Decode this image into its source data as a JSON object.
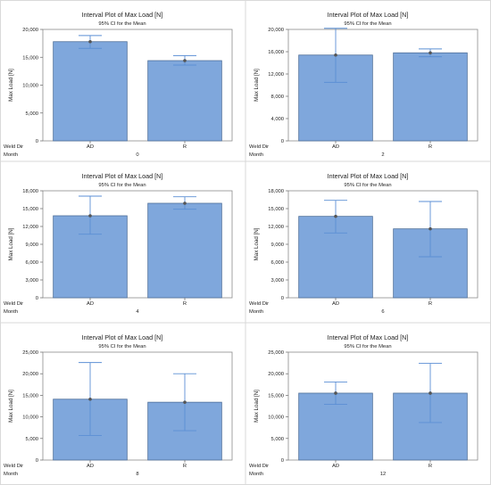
{
  "chart_data": [
    {
      "type": "bar",
      "title": "Interval Plot of Max Load [N]",
      "subtitle": "95% CI for the Mean",
      "ylabel": "Max Load [N]",
      "row_labels": [
        "Weld Dir",
        "Month"
      ],
      "categories": [
        "AD",
        "R"
      ],
      "month": "0",
      "values": [
        17800,
        14400
      ],
      "ci_low": [
        16600,
        13600
      ],
      "ci_high": [
        18900,
        15300
      ],
      "ylim": [
        0,
        20000
      ],
      "yticks": [
        0,
        5000,
        10000,
        15000,
        20000
      ],
      "yticklabels": [
        "0",
        "5,000",
        "10,000",
        "15,000",
        "20,000"
      ],
      "colors": {
        "bar": "#7fa7dc",
        "bar_edge": "#4e6f99",
        "ci": "#5b8fd4",
        "point": "#555555"
      }
    },
    {
      "type": "bar",
      "title": "Interval Plot of Max Load [N]",
      "subtitle": "95% CI for the Mean",
      "ylabel": "Max Load [N]",
      "row_labels": [
        "Weld Dir",
        "Month"
      ],
      "categories": [
        "AD",
        "R"
      ],
      "month": "2",
      "values": [
        15400,
        15800
      ],
      "ci_low": [
        10500,
        15100
      ],
      "ci_high": [
        20200,
        16500
      ],
      "ylim": [
        0,
        20000
      ],
      "yticks": [
        0,
        4000,
        8000,
        12000,
        16000,
        20000
      ],
      "yticklabels": [
        "0",
        "4,000",
        "8,000",
        "12,000",
        "16,000",
        "20,000"
      ],
      "colors": {
        "bar": "#7fa7dc",
        "bar_edge": "#4e6f99",
        "ci": "#5b8fd4",
        "point": "#555555"
      }
    },
    {
      "type": "bar",
      "title": "Interval Plot of Max Load [N]",
      "subtitle": "95% CI for the Mean",
      "ylabel": "Max Load [N]",
      "row_labels": [
        "Weld Dir",
        "Month"
      ],
      "categories": [
        "AD",
        "R"
      ],
      "month": "4",
      "values": [
        13800,
        15900
      ],
      "ci_low": [
        10700,
        14900
      ],
      "ci_high": [
        17100,
        17000
      ],
      "ylim": [
        0,
        18000
      ],
      "yticks": [
        0,
        3000,
        6000,
        9000,
        12000,
        15000,
        18000
      ],
      "yticklabels": [
        "0",
        "3,000",
        "6,000",
        "9,000",
        "12,000",
        "15,000",
        "18,000"
      ],
      "colors": {
        "bar": "#7fa7dc",
        "bar_edge": "#4e6f99",
        "ci": "#5b8fd4",
        "point": "#555555"
      }
    },
    {
      "type": "bar",
      "title": "Interval Plot of Max Load [N]",
      "subtitle": "95% CI for the Mean",
      "ylabel": "Max Load [N]",
      "row_labels": [
        "Weld Dir",
        "Month"
      ],
      "categories": [
        "AD",
        "R"
      ],
      "month": "6",
      "values": [
        13700,
        11600
      ],
      "ci_low": [
        10900,
        6900
      ],
      "ci_high": [
        16400,
        16200
      ],
      "ylim": [
        0,
        18000
      ],
      "yticks": [
        0,
        3000,
        6000,
        9000,
        12000,
        15000,
        18000
      ],
      "yticklabels": [
        "0",
        "3,000",
        "6,000",
        "9,000",
        "12,000",
        "15,000",
        "18,000"
      ],
      "colors": {
        "bar": "#7fa7dc",
        "bar_edge": "#4e6f99",
        "ci": "#5b8fd4",
        "point": "#555555"
      }
    },
    {
      "type": "bar",
      "title": "Interval Plot of Max Load [N]",
      "subtitle": "95% CI for the Mean",
      "ylabel": "Max Load [N]",
      "row_labels": [
        "Weld Dir",
        "Month"
      ],
      "categories": [
        "AD",
        "R"
      ],
      "month": "8",
      "values": [
        14100,
        13400
      ],
      "ci_low": [
        5700,
        6800
      ],
      "ci_high": [
        22600,
        20000
      ],
      "ylim": [
        0,
        25000
      ],
      "yticks": [
        0,
        5000,
        10000,
        15000,
        20000,
        25000
      ],
      "yticklabels": [
        "0",
        "5,000",
        "10,000",
        "15,000",
        "20,000",
        "25,000"
      ],
      "colors": {
        "bar": "#7fa7dc",
        "bar_edge": "#4e6f99",
        "ci": "#5b8fd4",
        "point": "#555555"
      }
    },
    {
      "type": "bar",
      "title": "Interval Plot of Max Load [N]",
      "subtitle": "95% CI for the Mean",
      "ylabel": "Max Load [N]",
      "row_labels": [
        "Weld Dir",
        "Month"
      ],
      "categories": [
        "AD",
        "R"
      ],
      "month": "12",
      "values": [
        15500,
        15500
      ],
      "ci_low": [
        12900,
        8700
      ],
      "ci_high": [
        18100,
        22400
      ],
      "ylim": [
        0,
        25000
      ],
      "yticks": [
        0,
        5000,
        10000,
        15000,
        20000,
        25000
      ],
      "yticklabels": [
        "0",
        "5,000",
        "10,000",
        "15,000",
        "20,000",
        "25,000"
      ],
      "colors": {
        "bar": "#7fa7dc",
        "bar_edge": "#4e6f99",
        "ci": "#5b8fd4",
        "point": "#555555"
      }
    }
  ]
}
